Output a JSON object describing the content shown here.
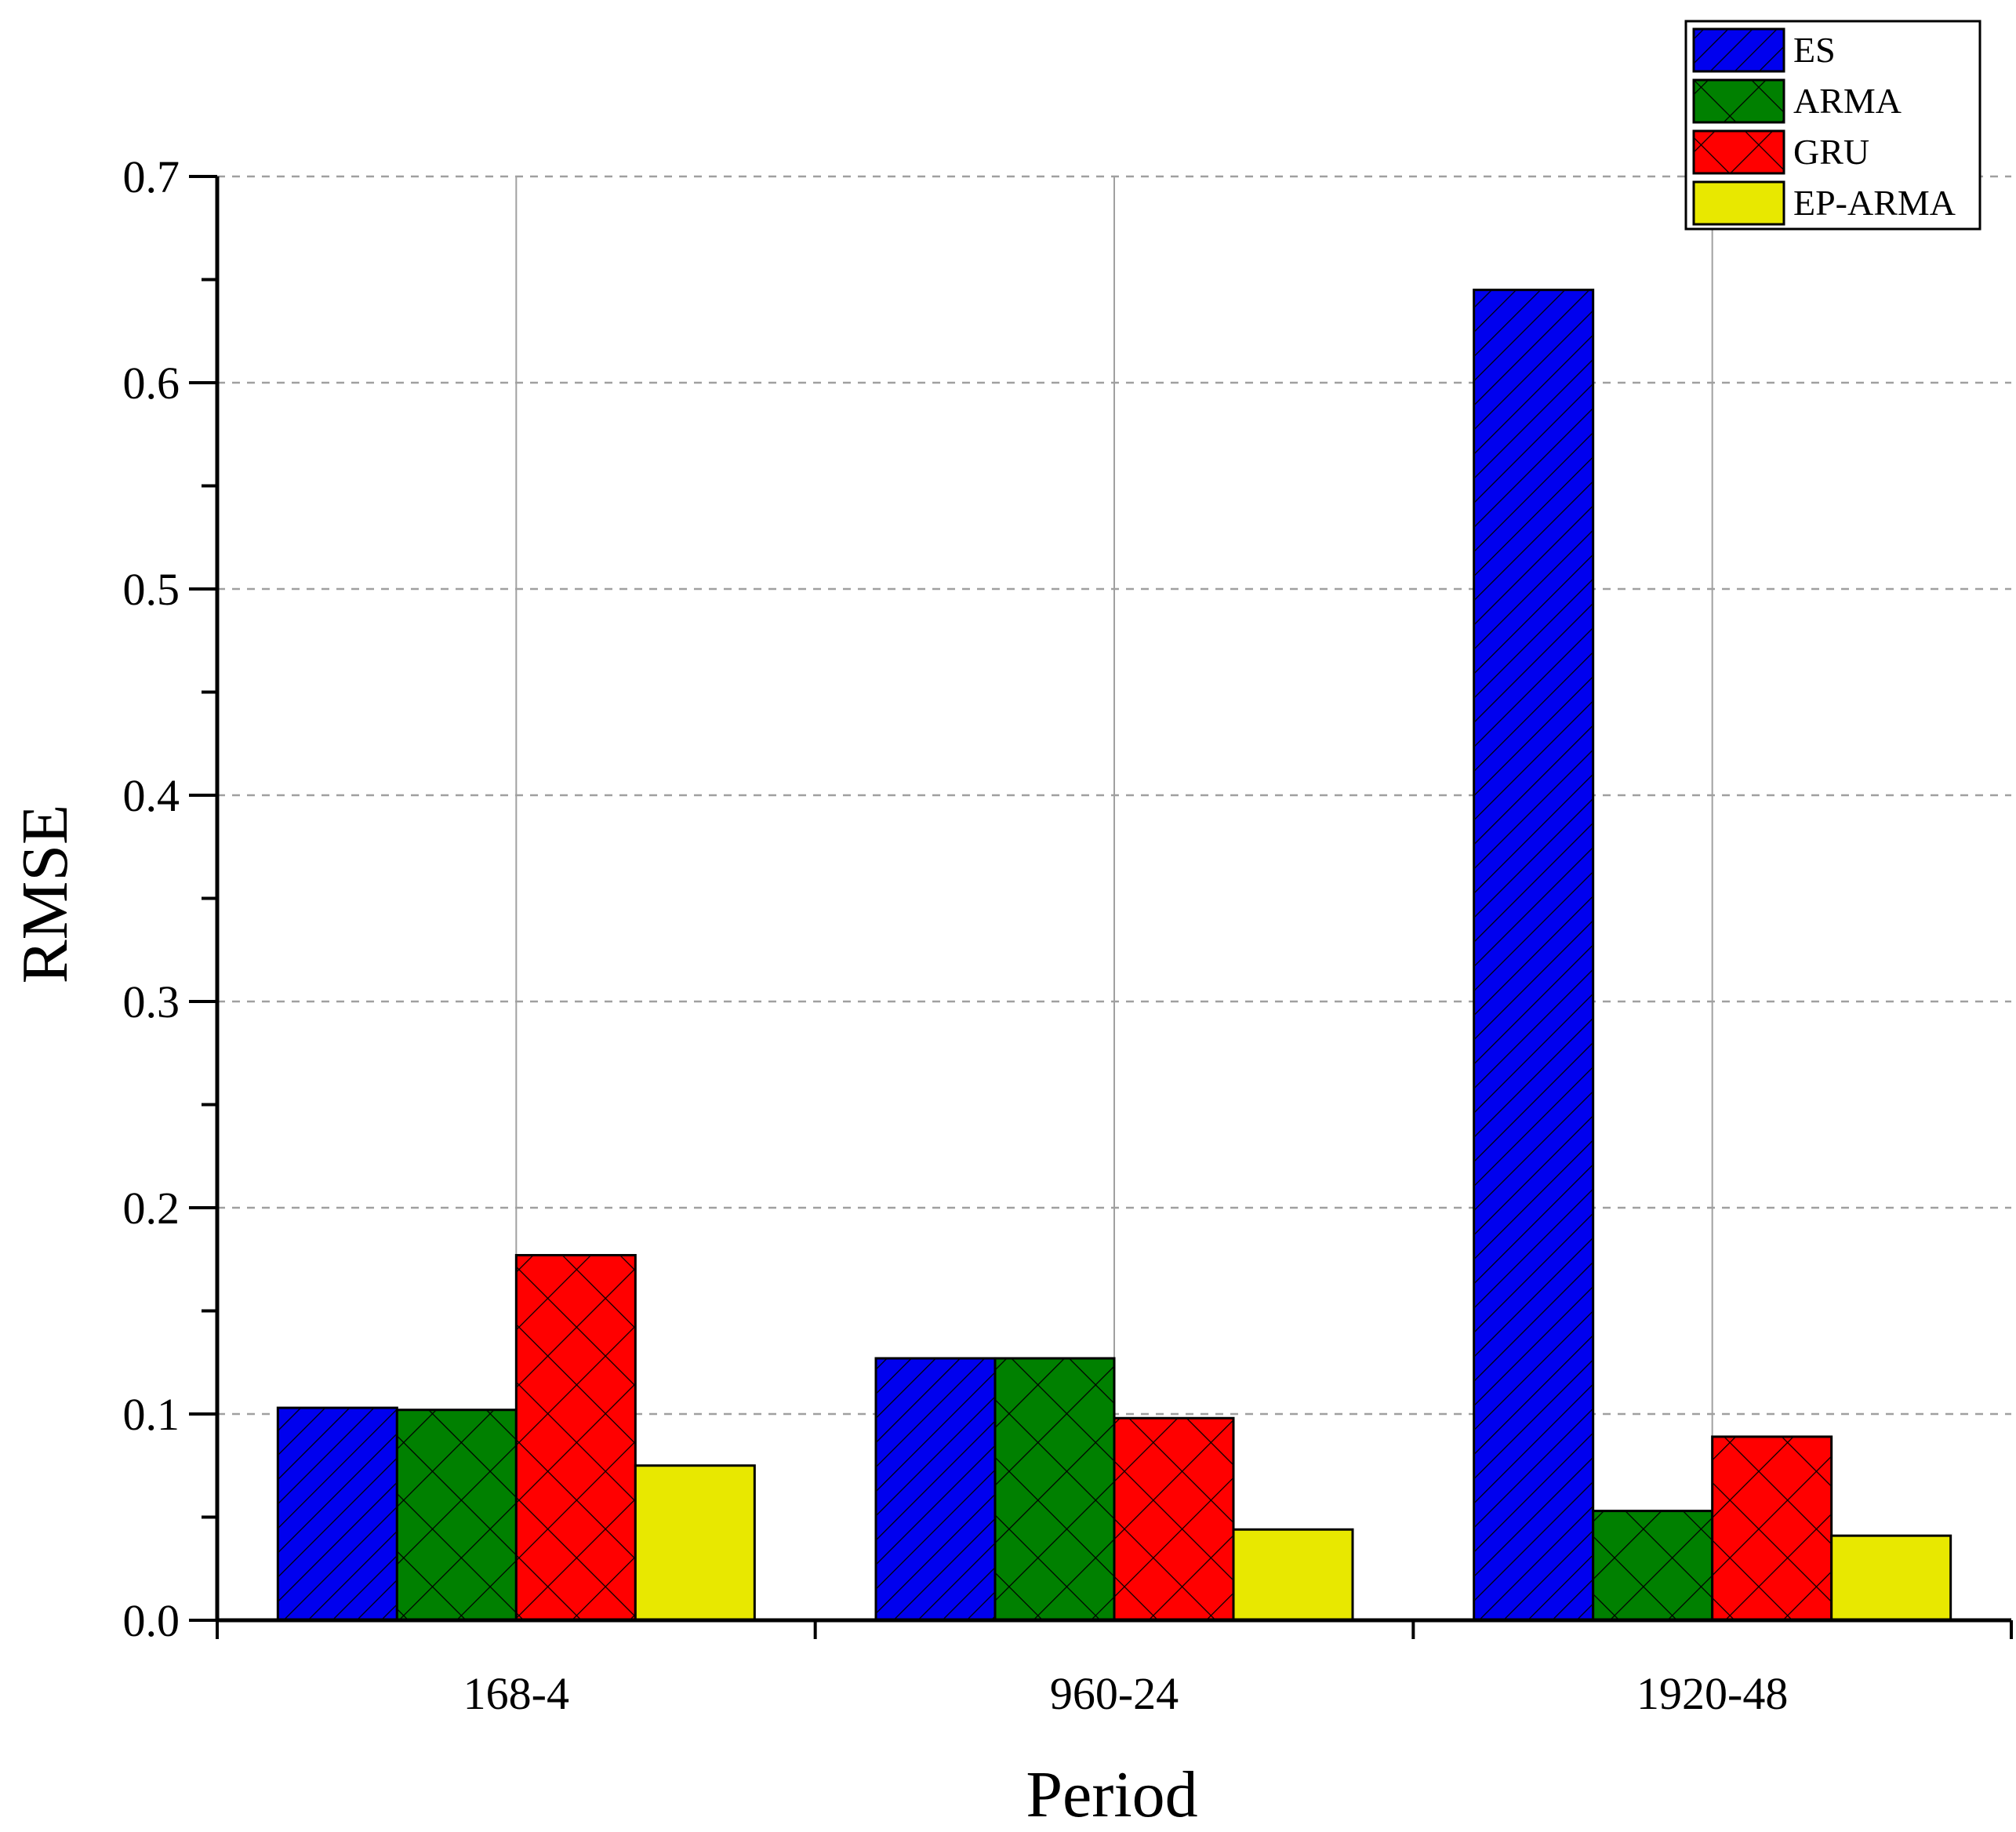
{
  "chart_data": {
    "type": "bar",
    "title": "",
    "xlabel": "Period",
    "ylabel": "RMSE",
    "categories": [
      "168-4",
      "960-24",
      "1920-48"
    ],
    "ylim": [
      0,
      0.7
    ],
    "yticks": [
      "0.0",
      "0.1",
      "0.2",
      "0.3",
      "0.4",
      "0.5",
      "0.6",
      "0.7"
    ],
    "grid": {
      "y": "dashed",
      "x": "solid at category centers"
    },
    "legend_position": "top-right",
    "series": [
      {
        "name": "ES",
        "color": "#0000ee",
        "pattern": "diagonal-hatch",
        "values": [
          0.103,
          0.127,
          0.645
        ]
      },
      {
        "name": "ARMA",
        "color": "#008000",
        "pattern": "crosshatch",
        "values": [
          0.102,
          0.127,
          0.053
        ]
      },
      {
        "name": "GRU",
        "color": "#ff0000",
        "pattern": "crosshatch",
        "values": [
          0.177,
          0.098,
          0.089
        ]
      },
      {
        "name": "EP-ARMA",
        "color": "#e8e800",
        "pattern": "none",
        "values": [
          0.075,
          0.044,
          0.041
        ]
      }
    ]
  }
}
